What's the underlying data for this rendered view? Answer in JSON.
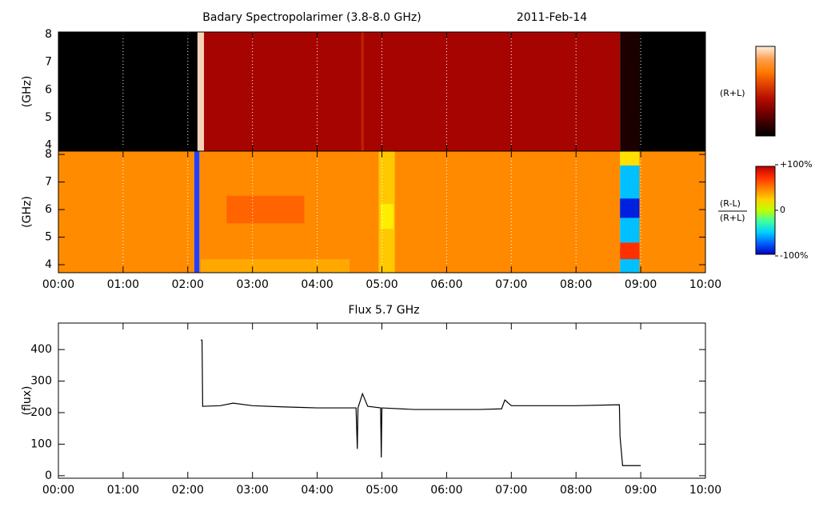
{
  "chart_data": [
    {
      "type": "heatmap",
      "title": "Badary Spectropolarimer (3.8-8.0 GHz)",
      "subtitle": "2011-Feb-14",
      "ylabel": "(GHz)",
      "ylabel_color": "#000000",
      "side_label": "(R+L)",
      "xlim": [
        0,
        10
      ],
      "xticks": [
        0,
        1,
        2,
        3,
        4,
        5,
        6,
        7,
        8,
        9,
        10
      ],
      "xtick_labels": false,
      "ylim": [
        3.78,
        8.09
      ],
      "yticks": [
        4,
        5,
        6,
        7,
        8
      ],
      "grid": true,
      "colorbar": {
        "colors": [
          "#000000",
          "#3a0000",
          "#800000",
          "#b81000",
          "#e04000",
          "#ff7a00",
          "#ffa050",
          "#fff0e0"
        ]
      },
      "cells": [
        {
          "t": [
            0,
            2.15
          ],
          "f": [
            3.78,
            8.09
          ],
          "color": "#000000"
        },
        {
          "t": [
            2.15,
            2.25
          ],
          "f": [
            3.78,
            8.09
          ],
          "color": "#f5d2b8"
        },
        {
          "t": [
            2.25,
            8.68
          ],
          "f": [
            3.78,
            8.09
          ],
          "color": "#a60400"
        },
        {
          "t": [
            4.68,
            4.72
          ],
          "f": [
            3.78,
            8.09
          ],
          "color": "#c02000"
        },
        {
          "t": [
            8.68,
            8.98
          ],
          "f": [
            3.78,
            8.09
          ],
          "color": "#1c0000"
        },
        {
          "t": [
            8.98,
            10
          ],
          "f": [
            3.78,
            8.09
          ],
          "color": "#000000"
        }
      ]
    },
    {
      "type": "heatmap",
      "ylabel": "(GHz)",
      "ylabel_color": "#1a1aa0",
      "side_label_top": "(R-L)",
      "side_label_bottom": "(R+L)",
      "xlim": [
        0,
        10
      ],
      "xticks": [
        {
          "value": 0,
          "label": "00:00"
        },
        {
          "value": 1,
          "label": "01:00"
        },
        {
          "value": 2,
          "label": "02:00"
        },
        {
          "value": 3,
          "label": "03:00"
        },
        {
          "value": 4,
          "label": "04:00"
        },
        {
          "value": 5,
          "label": "05:00"
        },
        {
          "value": 6,
          "label": "06:00"
        },
        {
          "value": 7,
          "label": "07:00"
        },
        {
          "value": 8,
          "label": "08:00"
        },
        {
          "value": 9,
          "label": "09:00"
        },
        {
          "value": 10,
          "label": "10:00"
        }
      ],
      "xtick_labels": true,
      "ylim": [
        3.71,
        8.12
      ],
      "yticks": [
        4,
        5,
        6,
        7,
        8
      ],
      "grid": true,
      "colorbar": {
        "colors": [
          "#0000c0",
          "#0060ff",
          "#00d0ff",
          "#40ffa0",
          "#c0ff00",
          "#ffd000",
          "#ff8000",
          "#ff3000",
          "#c00000"
        ],
        "lim": [
          -100,
          100
        ],
        "ticks": [
          {
            "value": 100,
            "label": "+100%"
          },
          {
            "value": 0,
            "label": "0"
          },
          {
            "value": -100,
            "label": "-100%"
          }
        ]
      },
      "cells": [
        {
          "t": [
            0,
            2.1
          ],
          "f": [
            3.71,
            8.12
          ],
          "color": "#ff8c00"
        },
        {
          "t": [
            2.1,
            2.18
          ],
          "f": [
            3.71,
            8.12
          ],
          "color": "#2040ff"
        },
        {
          "t": [
            2.18,
            8.68
          ],
          "f": [
            3.71,
            8.12
          ],
          "color": "#ff8a00"
        },
        {
          "t": [
            2.6,
            3.8
          ],
          "f": [
            5.5,
            6.5
          ],
          "color": "#ff6400"
        },
        {
          "t": [
            2.2,
            4.5
          ],
          "f": [
            3.71,
            4.2
          ],
          "color": "#ffa800"
        },
        {
          "t": [
            4.95,
            5.2
          ],
          "f": [
            3.71,
            8.12
          ],
          "color": "#ffc800"
        },
        {
          "t": [
            4.98,
            5.18
          ],
          "f": [
            5.3,
            6.2
          ],
          "color": "#ffee00"
        },
        {
          "t": [
            8.68,
            8.98
          ],
          "f": [
            3.71,
            8.12
          ],
          "color": "#00c0ff"
        },
        {
          "t": [
            8.68,
            8.98
          ],
          "f": [
            5.7,
            6.4
          ],
          "color": "#0020e0"
        },
        {
          "t": [
            8.68,
            8.98
          ],
          "f": [
            4.2,
            4.8
          ],
          "color": "#ff3000"
        },
        {
          "t": [
            8.68,
            8.98
          ],
          "f": [
            7.6,
            8.12
          ],
          "color": "#ffe000"
        },
        {
          "t": [
            8.98,
            10
          ],
          "f": [
            3.71,
            8.12
          ],
          "color": "#ff8c00"
        }
      ]
    },
    {
      "type": "line",
      "title": "Flux 5.7 GHz",
      "ylabel": "(flux)",
      "color": "#000000",
      "xlim": [
        0,
        10
      ],
      "xticks": [
        {
          "value": 0,
          "label": "00:00"
        },
        {
          "value": 1,
          "label": "01:00"
        },
        {
          "value": 2,
          "label": "02:00"
        },
        {
          "value": 3,
          "label": "03:00"
        },
        {
          "value": 4,
          "label": "04:00"
        },
        {
          "value": 5,
          "label": "05:00"
        },
        {
          "value": 6,
          "label": "06:00"
        },
        {
          "value": 7,
          "label": "07:00"
        },
        {
          "value": 8,
          "label": "08:00"
        },
        {
          "value": 9,
          "label": "09:00"
        },
        {
          "value": 10,
          "label": "10:00"
        }
      ],
      "xtick_labels": true,
      "ylim": [
        -8,
        484
      ],
      "yticks": [
        0,
        100,
        200,
        300,
        400
      ],
      "grid": false,
      "x": [
        2.2,
        2.22,
        2.23,
        2.5,
        2.7,
        3.0,
        3.5,
        4.0,
        4.6,
        4.62,
        4.63,
        4.7,
        4.78,
        4.98,
        4.99,
        5.0,
        5.5,
        6.0,
        6.5,
        6.85,
        6.9,
        7.0,
        7.5,
        8.0,
        8.67,
        8.68,
        8.72,
        9.0
      ],
      "y": [
        430,
        430,
        220,
        222,
        230,
        222,
        218,
        215,
        215,
        85,
        215,
        260,
        220,
        215,
        58,
        215,
        210,
        210,
        210,
        212,
        240,
        222,
        222,
        222,
        225,
        125,
        32,
        32
      ]
    }
  ]
}
